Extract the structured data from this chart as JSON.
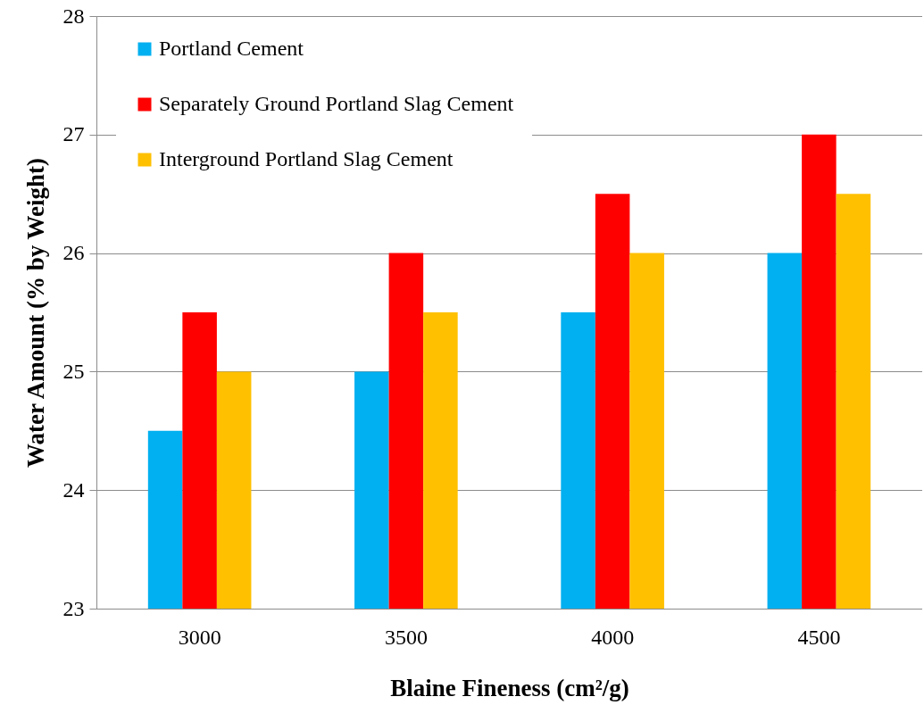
{
  "chart_data": {
    "type": "bar",
    "xlabel": "Blaine Fineness (cm²/g)",
    "ylabel": "Water Amount (% by Weight)",
    "categories": [
      "3000",
      "3500",
      "4000",
      "4500"
    ],
    "series": [
      {
        "name": "Portland Cement",
        "color": "#00b0f0",
        "values": [
          24.5,
          25,
          25.5,
          26
        ]
      },
      {
        "name": "Separately Ground Portland Slag Cement",
        "color": "#ff0000",
        "values": [
          25.5,
          26,
          26.5,
          27
        ]
      },
      {
        "name": "Interground Portland Slag Cement",
        "color": "#ffc000",
        "values": [
          25,
          25.5,
          26,
          26.5
        ]
      }
    ],
    "ylim": [
      23,
      28
    ],
    "yticks": [
      23,
      24,
      25,
      26,
      27,
      28
    ],
    "grid": "y",
    "legend": "top left"
  }
}
